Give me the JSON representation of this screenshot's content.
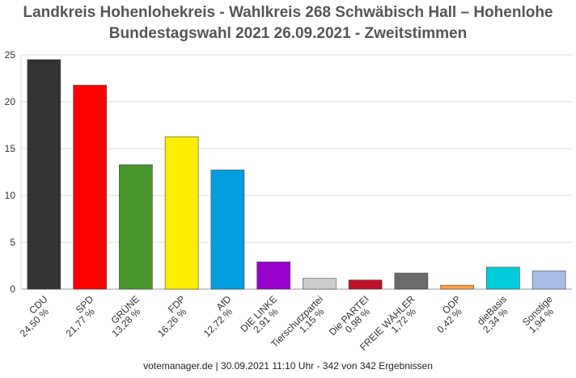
{
  "title_line1": "Landkreis Hohenlohekreis - Wahlkreis 268 Schwäbisch Hall – Hohenlohe",
  "title_line2": "Bundestagswahl 2021 26.09.2021  - Zweitstimmen",
  "footer": "votemanager.de | 30.09.2021 11:10 Uhr - 342 von 342 Ergebnissen",
  "chart_data": {
    "type": "bar",
    "title": "Landkreis Hohenlohekreis - Wahlkreis 268 Schwäbisch Hall – Hohenlohe",
    "subtitle": "Bundestagswahl 2021 26.09.2021  - Zweitstimmen",
    "xlabel": "",
    "ylabel": "",
    "ylim": [
      0,
      25
    ],
    "yticks": [
      "0",
      "5",
      "10",
      "15",
      "20",
      "25"
    ],
    "grid": true,
    "legend": "none",
    "categories": [
      "CDU",
      "SPD",
      "GRÜNE",
      "FDP",
      "AfD",
      "DIE LINKE",
      "Tierschutzpartei",
      "Die PARTEI",
      "FREIE WÄHLER",
      "ÖDP",
      "dieBasis",
      "Sonstige"
    ],
    "value_labels": [
      "24,50 %",
      "21,77 %",
      "13,28 %",
      "16,26 %",
      "12,72 %",
      "2,91 %",
      "1,15 %",
      "0,98 %",
      "1,72 %",
      "0,42 %",
      "2,34 %",
      "1,94 %"
    ],
    "values": [
      24.5,
      21.77,
      13.28,
      16.26,
      12.72,
      2.91,
      1.15,
      0.98,
      1.72,
      0.42,
      2.34,
      1.94
    ],
    "colors": [
      "#333333",
      "#ff0000",
      "#46962b",
      "#ffed00",
      "#009ee0",
      "#9900cc",
      "#cccccc",
      "#bf1229",
      "#6b6b6b",
      "#ff9f3f",
      "#00ccdb",
      "#a8bde6"
    ]
  }
}
